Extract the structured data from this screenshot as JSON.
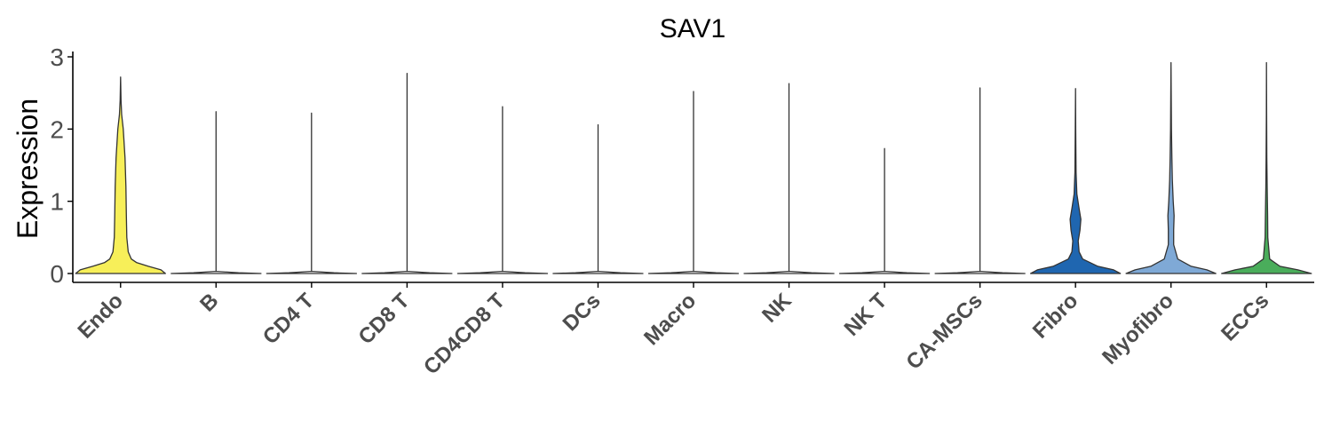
{
  "chart_data": {
    "type": "violin",
    "title": "SAV1",
    "xlabel": "",
    "ylabel": "Expression",
    "ylim": [
      0,
      3
    ],
    "yticks": [
      0,
      1,
      2,
      3
    ],
    "grid": false,
    "legend": "none",
    "categories": [
      "Endo",
      "B",
      "CD4 T",
      "CD8 T",
      "CD4CD8 T",
      "DCs",
      "Macro",
      "NK",
      "NK T",
      "CA-MSCs",
      "Fibro",
      "Myofibro",
      "ECCs"
    ],
    "max_values": [
      2.72,
      2.24,
      2.22,
      2.77,
      2.31,
      2.06,
      2.52,
      2.63,
      1.73,
      2.57,
      2.56,
      2.92,
      2.92
    ],
    "fill_colors": [
      "#f7ef59",
      "#ffffff",
      "#ffffff",
      "#ffffff",
      "#ffffff",
      "#ffffff",
      "#ffffff",
      "#ffffff",
      "#ffffff",
      "#ffffff",
      "#1f66b0",
      "#7fa9d6",
      "#4aad5b"
    ],
    "density_profiles": [
      [
        [
          0,
          1.0
        ],
        [
          0.05,
          0.9
        ],
        [
          0.1,
          0.62
        ],
        [
          0.15,
          0.36
        ],
        [
          0.2,
          0.24
        ],
        [
          0.3,
          0.17
        ],
        [
          0.5,
          0.14
        ],
        [
          0.8,
          0.13
        ],
        [
          1.2,
          0.12
        ],
        [
          1.6,
          0.1
        ],
        [
          2.0,
          0.06
        ],
        [
          2.2,
          0.025
        ],
        [
          2.4,
          0.01
        ],
        [
          2.72,
          0.0
        ]
      ],
      [
        [
          0,
          1.0
        ],
        [
          0.01,
          0.5
        ],
        [
          0.03,
          0.0
        ],
        [
          2.24,
          0.0
        ]
      ],
      [
        [
          0,
          1.0
        ],
        [
          0.01,
          0.5
        ],
        [
          0.03,
          0.0
        ],
        [
          2.22,
          0.0
        ]
      ],
      [
        [
          0,
          1.0
        ],
        [
          0.01,
          0.5
        ],
        [
          0.03,
          0.0
        ],
        [
          2.77,
          0.0
        ]
      ],
      [
        [
          0,
          1.0
        ],
        [
          0.01,
          0.5
        ],
        [
          0.03,
          0.0
        ],
        [
          2.31,
          0.0
        ]
      ],
      [
        [
          0,
          1.0
        ],
        [
          0.01,
          0.5
        ],
        [
          0.03,
          0.0
        ],
        [
          2.06,
          0.0
        ]
      ],
      [
        [
          0,
          1.0
        ],
        [
          0.01,
          0.5
        ],
        [
          0.03,
          0.0
        ],
        [
          2.52,
          0.0
        ]
      ],
      [
        [
          0,
          1.0
        ],
        [
          0.01,
          0.5
        ],
        [
          0.03,
          0.0
        ],
        [
          2.63,
          0.0
        ]
      ],
      [
        [
          0,
          1.0
        ],
        [
          0.01,
          0.5
        ],
        [
          0.03,
          0.0
        ],
        [
          1.73,
          0.0
        ]
      ],
      [
        [
          0,
          1.0
        ],
        [
          0.01,
          0.5
        ],
        [
          0.03,
          0.0
        ],
        [
          2.57,
          0.0
        ]
      ],
      [
        [
          0,
          1.0
        ],
        [
          0.05,
          0.85
        ],
        [
          0.1,
          0.5
        ],
        [
          0.2,
          0.16
        ],
        [
          0.3,
          0.08
        ],
        [
          0.45,
          0.06
        ],
        [
          0.6,
          0.1
        ],
        [
          0.75,
          0.12
        ],
        [
          0.9,
          0.08
        ],
        [
          1.1,
          0.03
        ],
        [
          1.4,
          0.012
        ],
        [
          2.0,
          0.005
        ],
        [
          2.56,
          0.0
        ]
      ],
      [
        [
          0,
          1.0
        ],
        [
          0.05,
          0.8
        ],
        [
          0.1,
          0.45
        ],
        [
          0.2,
          0.15
        ],
        [
          0.4,
          0.06
        ],
        [
          0.6,
          0.06
        ],
        [
          0.8,
          0.07
        ],
        [
          1.0,
          0.05
        ],
        [
          1.3,
          0.03
        ],
        [
          1.6,
          0.02
        ],
        [
          2.0,
          0.01
        ],
        [
          2.92,
          0.0
        ]
      ],
      [
        [
          0,
          1.0
        ],
        [
          0.05,
          0.7
        ],
        [
          0.1,
          0.3
        ],
        [
          0.2,
          0.07
        ],
        [
          0.5,
          0.03
        ],
        [
          0.8,
          0.025
        ],
        [
          1.2,
          0.015
        ],
        [
          1.6,
          0.008
        ],
        [
          2.2,
          0.003
        ],
        [
          2.92,
          0.0
        ]
      ]
    ]
  }
}
